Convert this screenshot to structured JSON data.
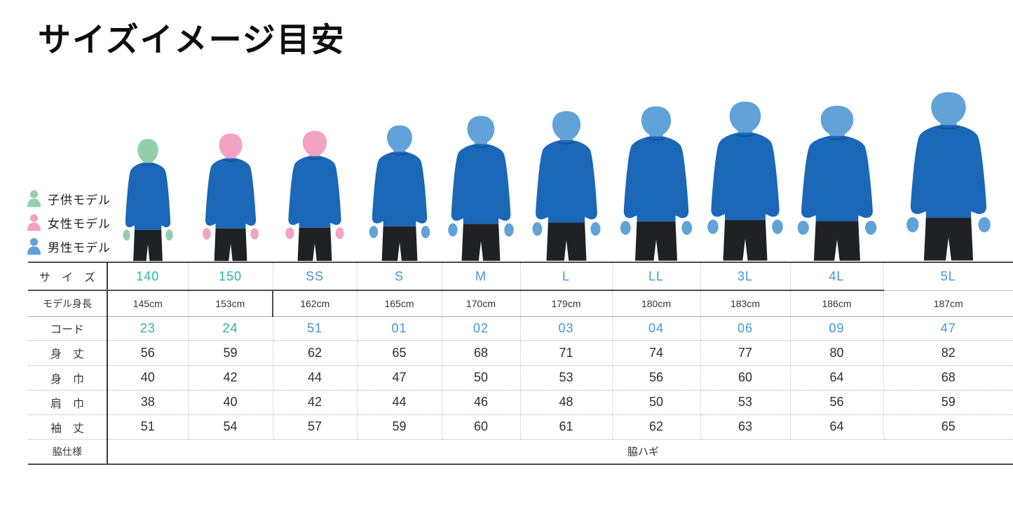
{
  "title": "サイズイメージ目安",
  "legend": {
    "items": [
      {
        "label": "子供モデル",
        "color": "#93cfab"
      },
      {
        "label": "女性モデル",
        "color": "#f2a3c4"
      },
      {
        "label": "男性モデル",
        "color": "#61a2d8"
      }
    ]
  },
  "models": [
    {
      "size": "140",
      "type": "child"
    },
    {
      "size": "150",
      "type": "female"
    },
    {
      "size": "SS",
      "type": "female"
    },
    {
      "size": "S",
      "type": "male"
    },
    {
      "size": "M",
      "type": "male"
    },
    {
      "size": "L",
      "type": "male"
    },
    {
      "size": "LL",
      "type": "male"
    },
    {
      "size": "3L",
      "type": "male"
    },
    {
      "size": "4L",
      "type": "male"
    },
    {
      "size": "5L",
      "type": "male"
    }
  ],
  "table": {
    "row_labels": [
      "サ　イ　ズ",
      "モデル身長",
      "コード",
      "身　丈",
      "身　巾",
      "肩　巾",
      "袖　丈",
      "脇仕様"
    ],
    "sizes": [
      "140",
      "150",
      "SS",
      "S",
      "M",
      "L",
      "LL",
      "3L",
      "4L",
      "5L"
    ],
    "model_heights": [
      "145cm",
      "153cm",
      "162cm",
      "165cm",
      "170cm",
      "179cm",
      "180cm",
      "183cm",
      "186cm",
      "187cm"
    ],
    "codes": [
      "23",
      "24",
      "51",
      "01",
      "02",
      "03",
      "04",
      "06",
      "09",
      "47"
    ],
    "body_length": [
      "56",
      "59",
      "62",
      "65",
      "68",
      "71",
      "74",
      "77",
      "80",
      "82"
    ],
    "body_width": [
      "40",
      "42",
      "44",
      "47",
      "50",
      "53",
      "56",
      "60",
      "64",
      "68"
    ],
    "shoulder_width": [
      "38",
      "40",
      "42",
      "44",
      "46",
      "48",
      "50",
      "53",
      "56",
      "59"
    ],
    "sleeve_length": [
      "51",
      "54",
      "57",
      "59",
      "60",
      "61",
      "62",
      "63",
      "64",
      "65"
    ],
    "side_spec": "脇ハギ",
    "child_size_count": 2
  },
  "colors": {
    "accent_teal": "#2eb4a2",
    "accent_blue": "#4696d8",
    "shirt_blue": "#1b67b8",
    "collar_blue": "#10528f",
    "shorts_black": "#202124",
    "child_skin": "#93cfab",
    "female_skin": "#f2a3c4",
    "male_skin": "#61a2d8"
  },
  "chart_data": {
    "type": "table",
    "title": "サイズイメージ目安",
    "columns": [
      "140",
      "150",
      "SS",
      "S",
      "M",
      "L",
      "LL",
      "3L",
      "4L",
      "5L"
    ],
    "rows": [
      {
        "label": "モデル身長",
        "values": [
          "145cm",
          "153cm",
          "162cm",
          "165cm",
          "170cm",
          "179cm",
          "180cm",
          "183cm",
          "186cm",
          "187cm"
        ]
      },
      {
        "label": "コード",
        "values": [
          "23",
          "24",
          "51",
          "01",
          "02",
          "03",
          "04",
          "06",
          "09",
          "47"
        ]
      },
      {
        "label": "身丈",
        "values": [
          56,
          59,
          62,
          65,
          68,
          71,
          74,
          77,
          80,
          82
        ]
      },
      {
        "label": "身巾",
        "values": [
          40,
          42,
          44,
          47,
          50,
          53,
          56,
          60,
          64,
          68
        ]
      },
      {
        "label": "肩巾",
        "values": [
          38,
          40,
          42,
          44,
          46,
          48,
          50,
          53,
          56,
          59
        ]
      },
      {
        "label": "袖丈",
        "values": [
          51,
          54,
          57,
          59,
          60,
          61,
          62,
          63,
          64,
          65
        ]
      },
      {
        "label": "脇仕様",
        "values": [
          "脇ハギ"
        ]
      }
    ],
    "legend": [
      "子供モデル",
      "女性モデル",
      "男性モデル"
    ]
  }
}
